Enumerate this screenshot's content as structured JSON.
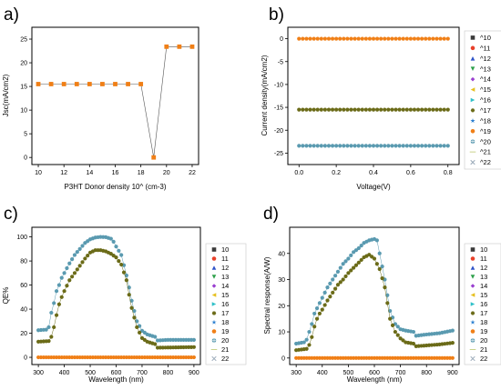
{
  "chart_data": [
    {
      "panel": "a)",
      "type": "line",
      "xlabel": "P3HT Donor density 10^ (cm-3)",
      "ylabel": "Jsc(mA/cm2)",
      "xlim": [
        9.5,
        22.5
      ],
      "ylim": [
        -1.5,
        27.5
      ],
      "xticks": [
        "10",
        "12",
        "14",
        "16",
        "18",
        "20",
        "22"
      ],
      "yticks": [
        "0",
        "5",
        "10",
        "15",
        "20",
        "25"
      ],
      "x": [
        10,
        11,
        12,
        13,
        14,
        15,
        16,
        17,
        18,
        19,
        20,
        21,
        22
      ],
      "series": [
        {
          "color": "#f07f16",
          "values": [
            15.5,
            15.5,
            15.5,
            15.5,
            15.5,
            15.5,
            15.5,
            15.5,
            15.5,
            0,
            23.4,
            23.4,
            23.4
          ]
        }
      ]
    },
    {
      "panel": "b)",
      "type": "scatter",
      "xlabel": "Voltage(V)",
      "ylabel": "Current density(mA/cm2)",
      "xlim": [
        -0.06,
        0.86
      ],
      "ylim": [
        -27.5,
        2.5
      ],
      "xticks": [
        "0.0",
        "0.2",
        "0.4",
        "0.6",
        "0.8"
      ],
      "yticks": [
        "0",
        "-5",
        "-10",
        "-15",
        "-20",
        "-25"
      ],
      "x_start": 0.0,
      "x_end": 0.8,
      "points": 41,
      "series_levels": [
        {
          "value": 0,
          "color": "#f07f16"
        },
        {
          "value": -15.5,
          "color": "#6b6b18"
        },
        {
          "value": -23.4,
          "color": "#5a9ab0"
        }
      ],
      "legend": [
        "^10",
        "^11",
        "^12",
        "^13",
        "^14",
        "^15",
        "^16",
        "^17",
        "^18",
        "^19",
        "^20",
        "^21",
        "^22"
      ]
    },
    {
      "panel": "c)",
      "type": "scatter",
      "xlabel": "Wavelength (nm)",
      "ylabel": "QE%",
      "xlim": [
        275,
        925
      ],
      "ylim": [
        -6,
        108
      ],
      "xticks": [
        "300",
        "400",
        "500",
        "600",
        "700",
        "800",
        "900"
      ],
      "yticks": [
        "0",
        "20",
        "40",
        "60",
        "80",
        "100"
      ],
      "x_start": 300,
      "x_end": 900,
      "x_step": 10,
      "series": [
        {
          "name": "top",
          "color": "#5a9ab0",
          "anchors": [
            [
              300,
              22.5
            ],
            [
              330,
              23
            ],
            [
              340,
              25
            ],
            [
              350,
              37
            ],
            [
              360,
              45
            ],
            [
              370,
              55
            ],
            [
              380,
              60
            ],
            [
              390,
              66
            ],
            [
              400,
              70
            ],
            [
              420,
              78
            ],
            [
              440,
              85
            ],
            [
              460,
              90
            ],
            [
              480,
              95
            ],
            [
              500,
              98
            ],
            [
              520,
              99.5
            ],
            [
              540,
              100
            ],
            [
              560,
              99.8
            ],
            [
              580,
              98.5
            ],
            [
              590,
              96
            ],
            [
              600,
              92
            ],
            [
              620,
              85
            ],
            [
              640,
              68
            ],
            [
              650,
              58
            ],
            [
              660,
              47
            ],
            [
              680,
              30
            ],
            [
              700,
              22
            ],
            [
              720,
              19
            ],
            [
              750,
              17
            ],
            [
              760,
              14
            ],
            [
              800,
              14.5
            ],
            [
              900,
              14.5
            ]
          ]
        },
        {
          "name": "middle",
          "color": "#6b6b18",
          "anchors": [
            [
              300,
              13
            ],
            [
              340,
              13.5
            ],
            [
              350,
              17
            ],
            [
              360,
              25
            ],
            [
              370,
              35
            ],
            [
              380,
              44
            ],
            [
              390,
              50
            ],
            [
              400,
              55
            ],
            [
              420,
              64
            ],
            [
              440,
              70
            ],
            [
              460,
              76
            ],
            [
              480,
              82
            ],
            [
              500,
              87
            ],
            [
              520,
              89
            ],
            [
              540,
              89
            ],
            [
              560,
              88
            ],
            [
              580,
              86
            ],
            [
              600,
              83
            ],
            [
              620,
              77
            ],
            [
              640,
              64
            ],
            [
              650,
              52
            ],
            [
              660,
              41
            ],
            [
              680,
              25
            ],
            [
              700,
              16
            ],
            [
              720,
              13
            ],
            [
              750,
              11
            ],
            [
              760,
              8
            ],
            [
              900,
              8.5
            ]
          ]
        },
        {
          "name": "bottom",
          "color": "#f07f16",
          "constant": 0
        }
      ],
      "legend": [
        "10",
        "11",
        "12",
        "13",
        "14",
        "15",
        "16",
        "17",
        "18",
        "19",
        "20",
        "21",
        "22"
      ]
    },
    {
      "panel": "d)",
      "type": "scatter",
      "xlabel": "Wavelength (nm)",
      "ylabel": "Spectral response(A/W)",
      "xlim": [
        275,
        925
      ],
      "ylim": [
        -2.5,
        50
      ],
      "xticks": [
        "300",
        "400",
        "500",
        "600",
        "700",
        "800",
        "900"
      ],
      "yticks": [
        "0",
        "10",
        "20",
        "30",
        "40"
      ],
      "x_start": 300,
      "x_end": 900,
      "x_step": 10,
      "series": [
        {
          "name": "top",
          "color": "#5a9ab0",
          "anchors": [
            [
              300,
              5.5
            ],
            [
              330,
              6
            ],
            [
              340,
              7
            ],
            [
              350,
              10
            ],
            [
              360,
              13
            ],
            [
              370,
              17
            ],
            [
              380,
              19
            ],
            [
              390,
              21
            ],
            [
              400,
              23
            ],
            [
              420,
              27
            ],
            [
              440,
              30
            ],
            [
              460,
              33
            ],
            [
              480,
              36
            ],
            [
              500,
              38
            ],
            [
              520,
              40.5
            ],
            [
              540,
              42
            ],
            [
              560,
              44
            ],
            [
              580,
              45
            ],
            [
              600,
              45.5
            ],
            [
              610,
              45
            ],
            [
              620,
              40
            ],
            [
              640,
              30
            ],
            [
              650,
              24
            ],
            [
              660,
              18
            ],
            [
              680,
              13
            ],
            [
              700,
              11
            ],
            [
              720,
              10.5
            ],
            [
              750,
              10
            ],
            [
              760,
              8.5
            ],
            [
              800,
              9
            ],
            [
              850,
              9.5
            ],
            [
              900,
              10.5
            ]
          ]
        },
        {
          "name": "middle",
          "color": "#6b6b18",
          "anchors": [
            [
              300,
              3
            ],
            [
              340,
              3.5
            ],
            [
              350,
              5
            ],
            [
              360,
              8
            ],
            [
              370,
              12
            ],
            [
              380,
              15
            ],
            [
              390,
              17
            ],
            [
              400,
              18.5
            ],
            [
              420,
              22
            ],
            [
              440,
              25
            ],
            [
              460,
              28
            ],
            [
              480,
              30
            ],
            [
              500,
              32.5
            ],
            [
              520,
              34.5
            ],
            [
              540,
              36.5
            ],
            [
              560,
              38.5
            ],
            [
              580,
              39.5
            ],
            [
              600,
              38
            ],
            [
              620,
              34
            ],
            [
              640,
              27
            ],
            [
              650,
              21
            ],
            [
              660,
              15
            ],
            [
              680,
              10
            ],
            [
              700,
              7.5
            ],
            [
              720,
              6
            ],
            [
              750,
              5.5
            ],
            [
              760,
              4.5
            ],
            [
              800,
              4.8
            ],
            [
              850,
              5.2
            ],
            [
              900,
              5.8
            ]
          ]
        },
        {
          "name": "bottom",
          "color": "#f07f16",
          "constant": 0
        }
      ],
      "legend": [
        "10",
        "11",
        "12",
        "13",
        "14",
        "15",
        "16",
        "17",
        "18",
        "19",
        "20",
        "21",
        "22"
      ]
    }
  ],
  "legend_styles": [
    {
      "marker": "square",
      "color": "#3a3a3a"
    },
    {
      "marker": "circle",
      "color": "#e8402a"
    },
    {
      "marker": "triangle-up",
      "color": "#2f53c8"
    },
    {
      "marker": "triangle-down",
      "color": "#2da04a"
    },
    {
      "marker": "diamond",
      "color": "#9a3fd0"
    },
    {
      "marker": "triangle-left",
      "color": "#e6c020"
    },
    {
      "marker": "triangle-right",
      "color": "#2fc0c8"
    },
    {
      "marker": "hexagon",
      "color": "#6b6b18"
    },
    {
      "marker": "star",
      "color": "#2a7fd0"
    },
    {
      "marker": "circle",
      "color": "#f07f16"
    },
    {
      "marker": "circle-cross",
      "color": "#5a9ab0"
    },
    {
      "marker": "line",
      "color": "#c9d28a"
    },
    {
      "marker": "x",
      "color": "#9aa9b8"
    }
  ]
}
